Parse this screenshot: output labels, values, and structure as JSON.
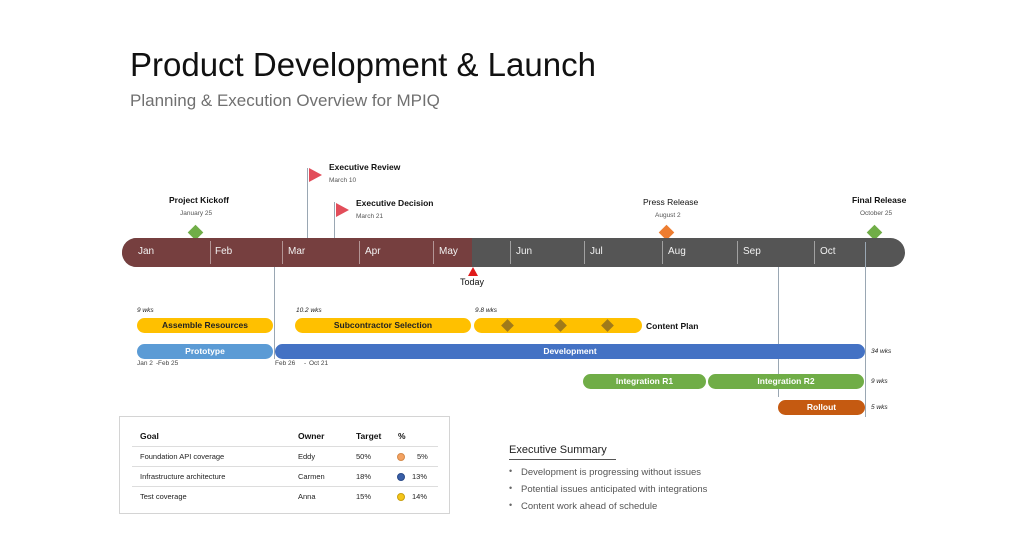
{
  "header": {
    "title": "Product Development & Launch",
    "subtitle": "Planning & Execution Overview for MPIQ"
  },
  "timeline": {
    "months": [
      "Jan",
      "Feb",
      "Mar",
      "Apr",
      "May",
      "Jun",
      "Jul",
      "Aug",
      "Sep",
      "Oct"
    ],
    "today_label": "Today",
    "colors": {
      "past": "#763f3f",
      "future": "#555555",
      "today_marker": "#e01b1b"
    }
  },
  "milestones": {
    "kickoff": {
      "title": "Project Kickoff",
      "date": "January 25",
      "icon": "diamond",
      "color": "#70ad47"
    },
    "review": {
      "title": "Executive Review",
      "date": "March 10",
      "icon": "flag",
      "color": "#e24d5a"
    },
    "decision": {
      "title": "Executive Decision",
      "date": "March 21",
      "icon": "flag",
      "color": "#e24d5a"
    },
    "press": {
      "title": "Press Release",
      "date": "August 2",
      "icon": "diamond",
      "color": "#ed7d31"
    },
    "final": {
      "title": "Final Release",
      "date": "October 25",
      "icon": "diamond",
      "color": "#70ad47"
    }
  },
  "tasks": {
    "assemble": {
      "label": "Assemble Resources",
      "duration": "9 wks",
      "color": "#ffc000"
    },
    "subcontractor": {
      "label": "Subcontractor Selection",
      "duration": "10.2 wks",
      "color": "#ffc000"
    },
    "content_plan": {
      "label": "Content Plan",
      "duration": "9.8 wks",
      "color": "#ffc000",
      "milestone_count": 3
    },
    "prototype": {
      "label": "Prototype",
      "start": "Jan 2",
      "end": "Feb 25",
      "color": "#5b9bd5"
    },
    "development": {
      "label": "Development",
      "start": "Feb 26",
      "end": "Oct 21",
      "duration": "34 wks",
      "color": "#4472c4"
    },
    "integration_r1": {
      "label": "Integration R1",
      "color": "#70ad47"
    },
    "integration_r2": {
      "label": "Integration R2",
      "duration": "9 wks",
      "color": "#70ad47"
    },
    "rollout": {
      "label": "Rollout",
      "duration": "5 wks",
      "color": "#c55a11"
    }
  },
  "goals": {
    "headers": {
      "goal": "Goal",
      "owner": "Owner",
      "target": "Target",
      "percent": "%"
    },
    "rows": [
      {
        "goal": "Foundation API coverage",
        "owner": "Eddy",
        "target": "50%",
        "percent": "5%",
        "status_color": "#f4a261"
      },
      {
        "goal": "Infrastructure architecture",
        "owner": "Carmen",
        "target": "18%",
        "percent": "13%",
        "status_color": "#3a5fa8"
      },
      {
        "goal": "Test coverage",
        "owner": "Anna",
        "target": "15%",
        "percent": "14%",
        "status_color": "#f5c518"
      }
    ]
  },
  "summary": {
    "title": "Executive Summary",
    "bullet": "•",
    "items": [
      "Development is progressing without issues",
      "Potential issues anticipated with integrations",
      "Content work ahead of schedule"
    ]
  }
}
